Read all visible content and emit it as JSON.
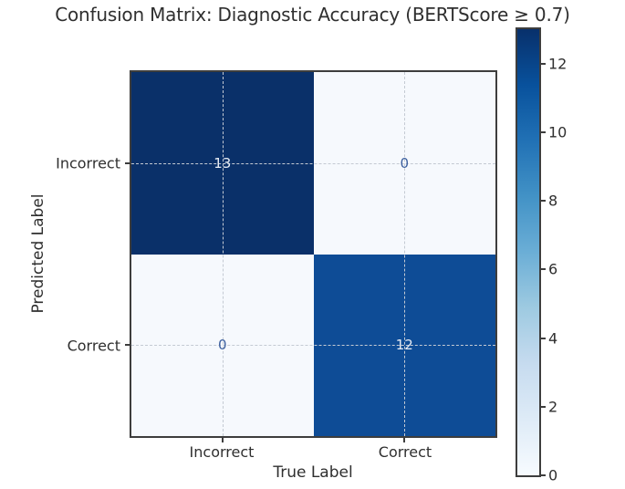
{
  "title": "Confusion Matrix: Diagnostic Accuracy (BERTScore ≥ 0.7)",
  "axes": {
    "x_label": "True Label",
    "y_label": "Predicted Label",
    "x_tick_labels": [
      "Incorrect",
      "Correct"
    ],
    "y_tick_labels": [
      "Incorrect",
      "Correct"
    ]
  },
  "matrix": {
    "values": [
      [
        "13",
        "0"
      ],
      [
        "0",
        "12"
      ]
    ]
  },
  "colorbar": {
    "min": 0,
    "max": 13,
    "tick_labels": [
      "0",
      "2",
      "4",
      "6",
      "8",
      "10",
      "12"
    ]
  },
  "colors": {
    "cell_top_left": "#0a3069",
    "cell_top_right": "#f6f9fd",
    "cell_bottom_left": "#f6f9fd",
    "cell_bottom_right": "#0e4c96",
    "value_on_dark": "#e8edf5",
    "value_on_light": "#3b5f9e",
    "grid": "#c4cad3",
    "spine": "#3d3d3d",
    "text": "#2f2f2f",
    "colormap_stops": [
      "#f7fbff",
      "#deebf7",
      "#c6dbef",
      "#9ecae1",
      "#6baed6",
      "#4292c6",
      "#2171b5",
      "#08519c",
      "#08306b"
    ]
  },
  "chart_data": {
    "type": "heatmap",
    "title": "Confusion Matrix: Diagnostic Accuracy (BERTScore ≥ 0.7)",
    "xlabel": "True Label",
    "ylabel": "Predicted Label",
    "x_categories": [
      "Incorrect",
      "Correct"
    ],
    "y_categories": [
      "Incorrect",
      "Correct"
    ],
    "values": [
      [
        13,
        0
      ],
      [
        0,
        12
      ]
    ],
    "colormap": "Blues",
    "color_range": [
      0,
      13
    ],
    "colorbar_ticks": [
      0,
      2,
      4,
      6,
      8,
      10,
      12
    ],
    "grid": true,
    "grid_style": "dashed",
    "legend_position": "right-colorbar",
    "annotations": [
      {
        "row": "Incorrect",
        "col": "Incorrect",
        "value": 13
      },
      {
        "row": "Incorrect",
        "col": "Correct",
        "value": 0
      },
      {
        "row": "Correct",
        "col": "Incorrect",
        "value": 0
      },
      {
        "row": "Correct",
        "col": "Correct",
        "value": 12
      }
    ]
  }
}
